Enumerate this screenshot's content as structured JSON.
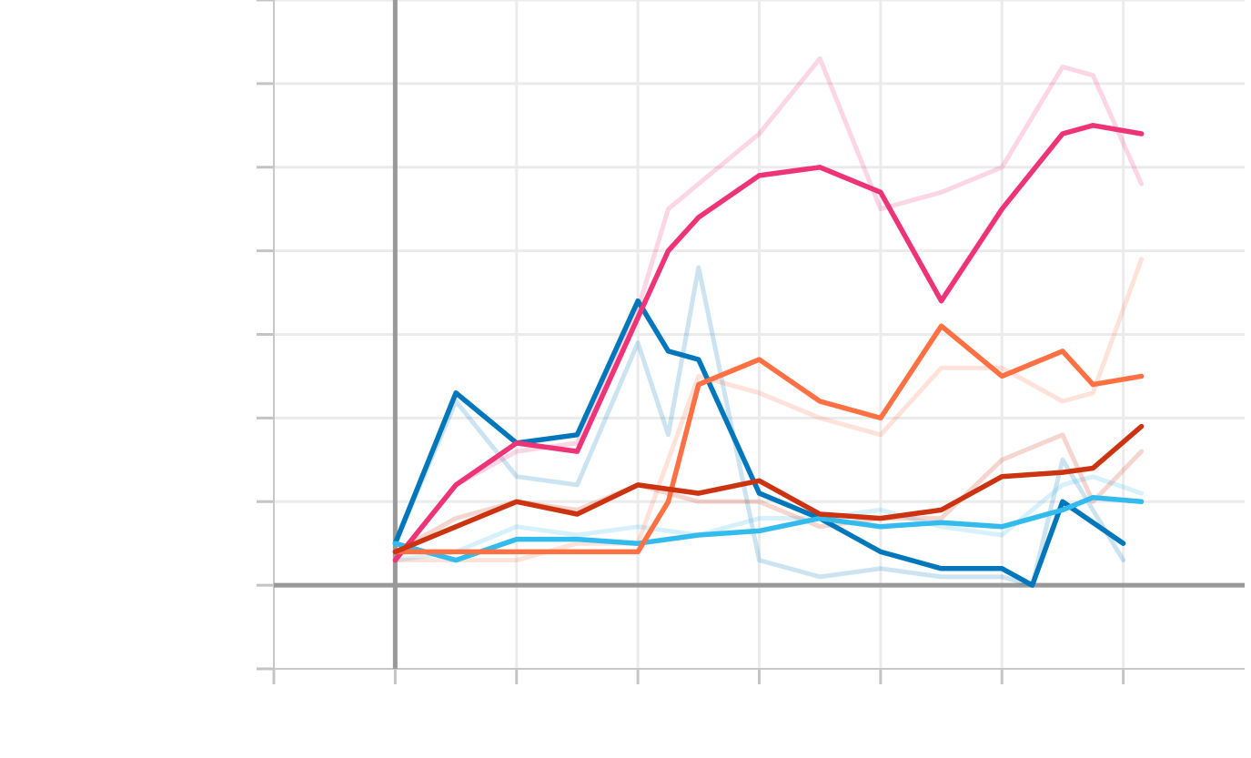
{
  "chart_data": {
    "type": "line",
    "title": "",
    "xlabel": "",
    "ylabel": "",
    "xlim": [
      -1,
      7
    ],
    "ylim": [
      -1,
      7
    ],
    "x_ticks": [
      -1,
      0,
      1,
      2,
      3,
      4,
      5,
      6
    ],
    "y_ticks": [
      -1,
      0,
      1,
      2,
      3,
      4,
      5,
      6,
      7
    ],
    "grid": true,
    "zero_lines": true,
    "legend": "none",
    "colors": {
      "blue": "#0077bb",
      "cyan": "#33bbee",
      "magenta": "#ee3377",
      "orange": "#ff7043",
      "red": "#cc3311",
      "zero_line": "#999999",
      "grid": "#ebebeb"
    },
    "series": [
      {
        "color": "#0077bb",
        "raw_opacity": 0.2,
        "x": [
          0,
          0.5,
          1,
          1.5,
          2,
          2.25,
          2.5,
          3,
          3.5,
          4,
          4.5,
          5,
          5.25,
          5.5,
          6
        ],
        "raw": [
          0.5,
          2.2,
          1.3,
          1.2,
          2.9,
          1.8,
          3.8,
          0.3,
          0.1,
          0.2,
          0.1,
          0.1,
          0.0,
          1.5,
          0.3
        ],
        "smooth": [
          0.5,
          2.3,
          1.7,
          1.8,
          3.4,
          2.8,
          2.7,
          1.1,
          0.8,
          0.4,
          0.2,
          0.2,
          0.0,
          1.0,
          0.5
        ]
      },
      {
        "color": "#33bbee",
        "raw_opacity": 0.2,
        "x": [
          0,
          0.5,
          1,
          1.5,
          2,
          2.5,
          3,
          3.5,
          4,
          4.5,
          5,
          5.5,
          5.75,
          6.15
        ],
        "raw": [
          0.3,
          0.4,
          0.7,
          0.6,
          0.7,
          0.6,
          0.8,
          0.8,
          0.9,
          0.7,
          0.6,
          1.2,
          1.3,
          1.1
        ],
        "smooth": [
          0.5,
          0.3,
          0.55,
          0.55,
          0.5,
          0.6,
          0.65,
          0.8,
          0.7,
          0.75,
          0.7,
          0.9,
          1.05,
          1.0
        ]
      },
      {
        "color": "#ee3377",
        "raw_opacity": 0.2,
        "x": [
          0,
          0.5,
          1,
          1.5,
          2,
          2.25,
          2.5,
          3,
          3.5,
          4,
          4.5,
          5,
          5.5,
          5.75,
          6.15
        ],
        "raw": [
          0.3,
          1.2,
          1.6,
          1.7,
          3.3,
          4.5,
          4.8,
          5.4,
          6.3,
          4.5,
          4.7,
          5.0,
          6.2,
          6.1,
          4.8
        ],
        "smooth": [
          0.3,
          1.2,
          1.7,
          1.6,
          3.2,
          4.0,
          4.4,
          4.9,
          5.0,
          4.7,
          3.4,
          4.5,
          5.4,
          5.5,
          5.4
        ]
      },
      {
        "color": "#ff7043",
        "raw_opacity": 0.2,
        "x": [
          0,
          0.5,
          1,
          1.5,
          2,
          2.25,
          2.5,
          3,
          3.5,
          4,
          4.5,
          5,
          5.5,
          5.75,
          6.15
        ],
        "raw": [
          0.3,
          0.3,
          0.3,
          0.5,
          0.5,
          1.5,
          2.5,
          2.3,
          2.0,
          1.8,
          2.6,
          2.6,
          2.2,
          2.3,
          3.9
        ],
        "smooth": [
          0.4,
          0.4,
          0.4,
          0.4,
          0.4,
          1.0,
          2.4,
          2.7,
          2.2,
          2.0,
          3.1,
          2.5,
          2.8,
          2.4,
          2.5
        ]
      },
      {
        "color": "#cc3311",
        "raw_opacity": 0.2,
        "x": [
          0,
          0.5,
          1,
          1.5,
          2,
          2.5,
          3,
          3.5,
          4,
          4.5,
          5,
          5.5,
          5.75,
          6.15
        ],
        "raw": [
          0.4,
          0.8,
          1.0,
          0.9,
          1.2,
          1.0,
          1.0,
          0.7,
          0.8,
          0.8,
          1.5,
          1.8,
          1.0,
          1.6
        ],
        "smooth": [
          0.4,
          0.7,
          1.0,
          0.85,
          1.2,
          1.1,
          1.25,
          0.85,
          0.8,
          0.9,
          1.3,
          1.35,
          1.4,
          1.9
        ]
      }
    ]
  }
}
